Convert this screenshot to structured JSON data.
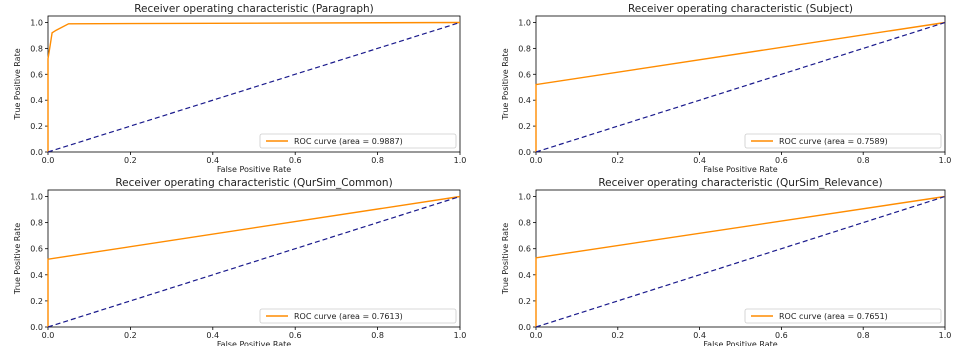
{
  "colors": {
    "roc": "#ff8c00",
    "chance": "#1a1a8c",
    "axis": "#000000",
    "legend_border": "#cccccc"
  },
  "chart_data": [
    {
      "type": "line",
      "title": "Receiver operating characteristic (Paragraph)",
      "xlabel": "False Positive Rate",
      "ylabel": "True Positive Rate",
      "xlim": [
        0,
        1
      ],
      "ylim": [
        0,
        1.05
      ],
      "xticks": [
        "0.0",
        "0.2",
        "0.4",
        "0.6",
        "0.8",
        "1.0"
      ],
      "yticks": [
        "0.0",
        "0.2",
        "0.4",
        "0.6",
        "0.8",
        "1.0"
      ],
      "legend_position": "lower-right",
      "series": [
        {
          "name": "ROC curve (area = 0.9887)",
          "style": "solid",
          "x": [
            0,
            0,
            0.005,
            0.01,
            0.02,
            0.05,
            1.0
          ],
          "y": [
            0,
            0.72,
            0.82,
            0.92,
            0.94,
            0.99,
            1.0
          ]
        },
        {
          "style": "dashed",
          "x": [
            0,
            1
          ],
          "y": [
            0,
            1
          ]
        }
      ]
    },
    {
      "type": "line",
      "title": "Receiver operating characteristic (Subject)",
      "xlabel": "False Positive Rate",
      "ylabel": "True Positive Rate",
      "xlim": [
        0,
        1
      ],
      "ylim": [
        0,
        1.05
      ],
      "xticks": [
        "0.0",
        "0.2",
        "0.4",
        "0.6",
        "0.8",
        "1.0"
      ],
      "yticks": [
        "0.0",
        "0.2",
        "0.4",
        "0.6",
        "0.8",
        "1.0"
      ],
      "legend_position": "lower-right",
      "series": [
        {
          "name": "ROC curve (area = 0.7589)",
          "style": "solid",
          "x": [
            0,
            0,
            1
          ],
          "y": [
            0,
            0.52,
            1.0
          ]
        },
        {
          "style": "dashed",
          "x": [
            0,
            1
          ],
          "y": [
            0,
            1
          ]
        }
      ]
    },
    {
      "type": "line",
      "title": "Receiver operating characteristic (QurSim_Common)",
      "xlabel": "False Positive Rate",
      "ylabel": "True Positive Rate",
      "xlim": [
        0,
        1
      ],
      "ylim": [
        0,
        1.05
      ],
      "xticks": [
        "0.0",
        "0.2",
        "0.4",
        "0.6",
        "0.8",
        "1.0"
      ],
      "yticks": [
        "0.0",
        "0.2",
        "0.4",
        "0.6",
        "0.8",
        "1.0"
      ],
      "legend_position": "lower-right",
      "series": [
        {
          "name": "ROC curve (area = 0.7613)",
          "style": "solid",
          "x": [
            0,
            0,
            1
          ],
          "y": [
            0,
            0.52,
            1.0
          ]
        },
        {
          "style": "dashed",
          "x": [
            0,
            1
          ],
          "y": [
            0,
            1
          ]
        }
      ]
    },
    {
      "type": "line",
      "title": "Receiver operating characteristic (QurSim_Relevance)",
      "xlabel": "False Positive Rate",
      "ylabel": "True Positive Rate",
      "xlim": [
        0,
        1
      ],
      "ylim": [
        0,
        1.05
      ],
      "xticks": [
        "0.0",
        "0.2",
        "0.4",
        "0.6",
        "0.8",
        "1.0"
      ],
      "yticks": [
        "0.0",
        "0.2",
        "0.4",
        "0.6",
        "0.8",
        "1.0"
      ],
      "legend_position": "lower-right",
      "series": [
        {
          "name": "ROC curve (area = 0.7651)",
          "style": "solid",
          "x": [
            0,
            0,
            1
          ],
          "y": [
            0,
            0.53,
            1.0
          ]
        },
        {
          "style": "dashed",
          "x": [
            0,
            1
          ],
          "y": [
            0,
            1
          ]
        }
      ]
    }
  ]
}
